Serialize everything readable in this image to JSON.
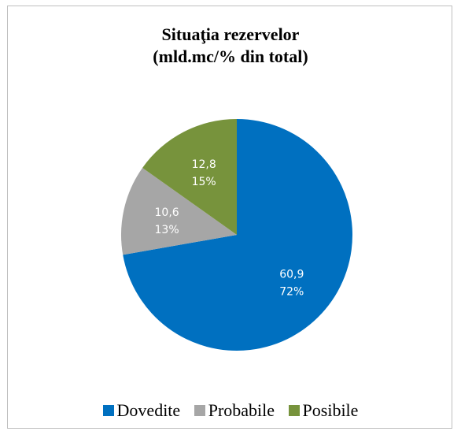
{
  "chart_data": {
    "type": "pie",
    "title": "Situaţia rezervelor",
    "subtitle": "(mld.mc/% din total)",
    "slices": [
      {
        "name": "Dovedite",
        "value": 60.9,
        "value_label": "60,9",
        "percent_label": "72%",
        "color": "#0070c0"
      },
      {
        "name": "Probabile",
        "value": 10.6,
        "value_label": "10,6",
        "percent_label": "13%",
        "color": "#a6a6a6"
      },
      {
        "name": "Posibile",
        "value": 12.8,
        "value_label": "12,8",
        "percent_label": "15%",
        "color": "#77933c"
      }
    ],
    "legend_position": "bottom",
    "data_label_color": "#ffffff"
  }
}
